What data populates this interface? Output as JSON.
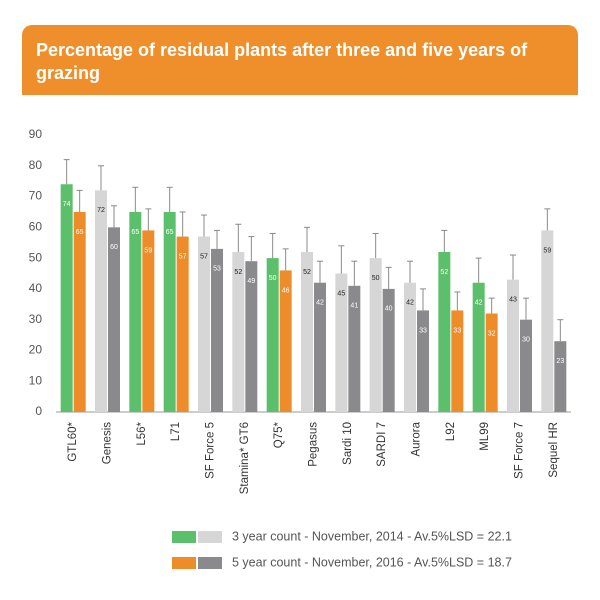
{
  "chart_data": {
    "type": "bar",
    "title": "Percentage of residual plants after three and five years of grazing",
    "categories": [
      "GTL60*",
      "Genesis",
      "L56*",
      "L71",
      "SF Force 5",
      "Stamina* GT6",
      "Q75*",
      "Pegasus",
      "Sardi 10",
      "SARDI 7",
      "Aurora",
      "L92",
      "ML99",
      "SF Force 7",
      "Sequel HR"
    ],
    "series": [
      {
        "name": "3 year count - November, 2014 - Av.5%LSD = 22.1",
        "colors": [
          "#5cbf6b",
          "#d6d6d6",
          "#5cbf6b",
          "#5cbf6b",
          "#d6d6d6",
          "#d6d6d6",
          "#5cbf6b",
          "#d6d6d6",
          "#d6d6d6",
          "#d6d6d6",
          "#d6d6d6",
          "#5cbf6b",
          "#5cbf6b",
          "#d6d6d6",
          "#d6d6d6"
        ],
        "values": [
          74,
          72,
          65,
          65,
          57,
          52,
          50,
          52,
          45,
          50,
          42,
          52,
          42,
          43,
          59
        ],
        "errors": [
          8,
          8,
          8,
          8,
          7,
          9,
          8,
          8,
          9,
          8,
          7,
          7,
          8,
          8,
          7
        ]
      },
      {
        "name": "5 year count - November, 2016 - Av.5%LSD = 18.7",
        "colors": [
          "#ef8c2a",
          "#8a8a8d",
          "#ef8c2a",
          "#ef8c2a",
          "#8a8a8d",
          "#8a8a8d",
          "#ef8c2a",
          "#8a8a8d",
          "#8a8a8d",
          "#8a8a8d",
          "#8a8a8d",
          "#ef8c2a",
          "#ef8c2a",
          "#8a8a8d",
          "#8a8a8d"
        ],
        "values": [
          65,
          60,
          59,
          57,
          53,
          49,
          46,
          42,
          41,
          40,
          33,
          33,
          32,
          30,
          23
        ],
        "errors": [
          7,
          7,
          7,
          8,
          6,
          8,
          7,
          7,
          8,
          7,
          7,
          6,
          5,
          7,
          7
        ]
      }
    ],
    "ylim": [
      0,
      90
    ],
    "yticks": [
      0,
      10,
      20,
      30,
      40,
      50,
      60,
      70,
      80,
      90
    ],
    "grid": false
  }
}
